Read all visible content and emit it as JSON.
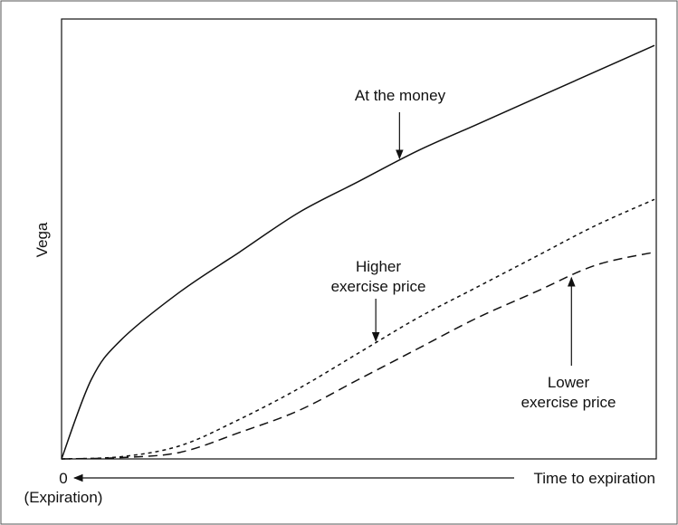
{
  "chart_data": {
    "type": "line",
    "title": "",
    "ylabel": "Vega",
    "xlabel": "Time to expiration",
    "x_origin_label": "0",
    "x_origin_sublabel": "(Expiration)",
    "x_direction": "decreasing-right-to-left",
    "grid": false,
    "legend": "none",
    "xlim": [
      0,
      1
    ],
    "ylim": [
      0,
      1
    ],
    "series": [
      {
        "name": "At the money",
        "style": "solid",
        "color": "#111111",
        "x": [
          0,
          0.05,
          0.1,
          0.2,
          0.3,
          0.4,
          0.5,
          0.6,
          0.7,
          0.8,
          0.9,
          1.0
        ],
        "y": [
          0,
          0.18,
          0.27,
          0.38,
          0.47,
          0.56,
          0.63,
          0.7,
          0.76,
          0.82,
          0.88,
          0.94
        ]
      },
      {
        "name": "Higher exercise price",
        "style": "dotted",
        "color": "#111111",
        "x": [
          0,
          0.1,
          0.2,
          0.3,
          0.4,
          0.5,
          0.6,
          0.7,
          0.8,
          0.9,
          1.0
        ],
        "y": [
          0,
          0.005,
          0.03,
          0.09,
          0.16,
          0.24,
          0.32,
          0.39,
          0.46,
          0.53,
          0.59
        ]
      },
      {
        "name": "Lower exercise price",
        "style": "dashed",
        "color": "#111111",
        "x": [
          0,
          0.1,
          0.2,
          0.3,
          0.4,
          0.5,
          0.6,
          0.7,
          0.8,
          0.9,
          1.0
        ],
        "y": [
          0,
          0.003,
          0.015,
          0.06,
          0.11,
          0.18,
          0.25,
          0.32,
          0.38,
          0.44,
          0.47
        ]
      }
    ],
    "annotations": [
      {
        "lines": [
          "At the money"
        ],
        "series": 0,
        "point_x": 0.57
      },
      {
        "lines": [
          "Higher",
          "exercise price"
        ],
        "series": 1,
        "point_x": 0.53
      },
      {
        "lines": [
          "Lower",
          "exercise price"
        ],
        "series": 2,
        "point_x": 0.86
      }
    ]
  }
}
